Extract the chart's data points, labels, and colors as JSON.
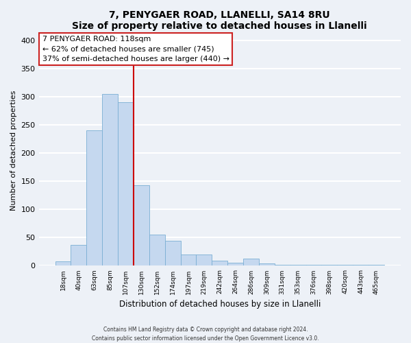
{
  "title": "7, PENYGAER ROAD, LLANELLI, SA14 8RU",
  "subtitle": "Size of property relative to detached houses in Llanelli",
  "xlabel": "Distribution of detached houses by size in Llanelli",
  "ylabel": "Number of detached properties",
  "bar_color": "#c5d8ef",
  "bar_edge_color": "#7aafd4",
  "background_color": "#edf1f7",
  "grid_color": "white",
  "tick_labels": [
    "18sqm",
    "40sqm",
    "63sqm",
    "85sqm",
    "107sqm",
    "130sqm",
    "152sqm",
    "174sqm",
    "197sqm",
    "219sqm",
    "242sqm",
    "264sqm",
    "286sqm",
    "309sqm",
    "331sqm",
    "353sqm",
    "376sqm",
    "398sqm",
    "420sqm",
    "443sqm",
    "465sqm"
  ],
  "bar_heights": [
    8,
    37,
    240,
    305,
    290,
    143,
    55,
    44,
    20,
    20,
    9,
    5,
    13,
    4,
    2,
    2,
    2,
    2,
    2,
    2,
    2
  ],
  "ylim": [
    0,
    410
  ],
  "yticks": [
    0,
    50,
    100,
    150,
    200,
    250,
    300,
    350,
    400
  ],
  "property_line_x": 4.5,
  "property_line_color": "#cc0000",
  "annotation_title": "7 PENYGAER ROAD: 118sqm",
  "annotation_line1": "← 62% of detached houses are smaller (745)",
  "annotation_line2": "37% of semi-detached houses are larger (440) →",
  "footer_line1": "Contains HM Land Registry data © Crown copyright and database right 2024.",
  "footer_line2": "Contains public sector information licensed under the Open Government Licence v3.0."
}
